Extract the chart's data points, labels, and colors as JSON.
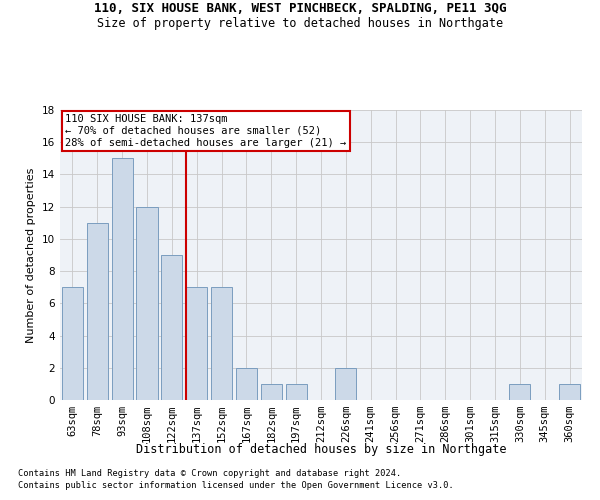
{
  "title": "110, SIX HOUSE BANK, WEST PINCHBECK, SPALDING, PE11 3QG",
  "subtitle": "Size of property relative to detached houses in Northgate",
  "xlabel": "Distribution of detached houses by size in Northgate",
  "ylabel": "Number of detached properties",
  "categories": [
    "63sqm",
    "78sqm",
    "93sqm",
    "108sqm",
    "122sqm",
    "137sqm",
    "152sqm",
    "167sqm",
    "182sqm",
    "197sqm",
    "212sqm",
    "226sqm",
    "241sqm",
    "256sqm",
    "271sqm",
    "286sqm",
    "301sqm",
    "315sqm",
    "330sqm",
    "345sqm",
    "360sqm"
  ],
  "values": [
    7,
    11,
    15,
    12,
    9,
    7,
    7,
    2,
    1,
    1,
    0,
    2,
    0,
    0,
    0,
    0,
    0,
    0,
    1,
    0,
    1
  ],
  "bar_color": "#ccd9e8",
  "bar_edge_color": "#7a9dbf",
  "highlight_index": 5,
  "highlight_line_color": "#cc0000",
  "ylim": [
    0,
    18
  ],
  "yticks": [
    0,
    2,
    4,
    6,
    8,
    10,
    12,
    14,
    16,
    18
  ],
  "annotation_text": "110 SIX HOUSE BANK: 137sqm\n← 70% of detached houses are smaller (52)\n28% of semi-detached houses are larger (21) →",
  "annotation_box_color": "#cc0000",
  "footer_line1": "Contains HM Land Registry data © Crown copyright and database right 2024.",
  "footer_line2": "Contains public sector information licensed under the Open Government Licence v3.0.",
  "background_color": "#ffffff",
  "plot_bg_color": "#eef2f7",
  "grid_color": "#c8c8c8",
  "title_fontsize": 9,
  "subtitle_fontsize": 8.5,
  "axis_label_fontsize": 8,
  "tick_fontsize": 7.5,
  "annotation_fontsize": 7.5,
  "footer_fontsize": 6.2
}
